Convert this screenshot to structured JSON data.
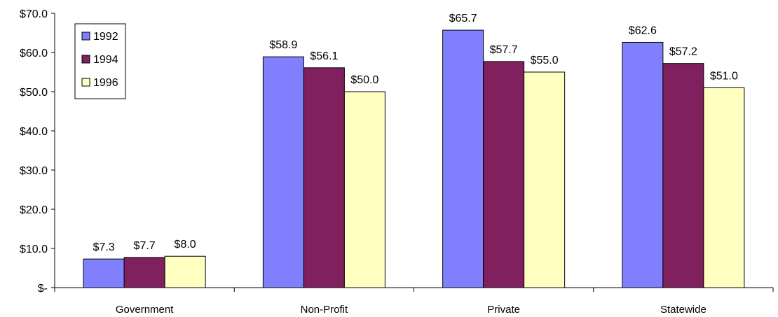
{
  "chart_data": {
    "type": "bar",
    "categories": [
      "Government",
      "Non-Profit",
      "Private",
      "Statewide"
    ],
    "series": [
      {
        "name": "1992",
        "values": [
          7.3,
          58.9,
          65.7,
          62.6
        ],
        "labels": [
          "$7.3",
          "$58.9",
          "$65.7",
          "$62.6"
        ]
      },
      {
        "name": "1994",
        "values": [
          7.7,
          56.1,
          57.7,
          57.2
        ],
        "labels": [
          "$7.7",
          "$56.1",
          "$57.7",
          "$57.2"
        ]
      },
      {
        "name": "1996",
        "values": [
          8.0,
          50.0,
          55.0,
          51.0
        ],
        "labels": [
          "$8.0",
          "$50.0",
          "$55.0",
          "$51.0"
        ]
      }
    ],
    "colors": [
      "#8080ff",
      "#80205f",
      "#ffffc0"
    ],
    "ylim": [
      0,
      70
    ],
    "y_ticks": [
      0,
      10,
      20,
      30,
      40,
      50,
      60,
      70
    ],
    "y_tick_labels": [
      "$-",
      "$10.0",
      "$20.0",
      "$30.0",
      "$40.0",
      "$50.0",
      "$60.0",
      "$70.0"
    ],
    "legend_position": "top-left",
    "grid": false
  }
}
